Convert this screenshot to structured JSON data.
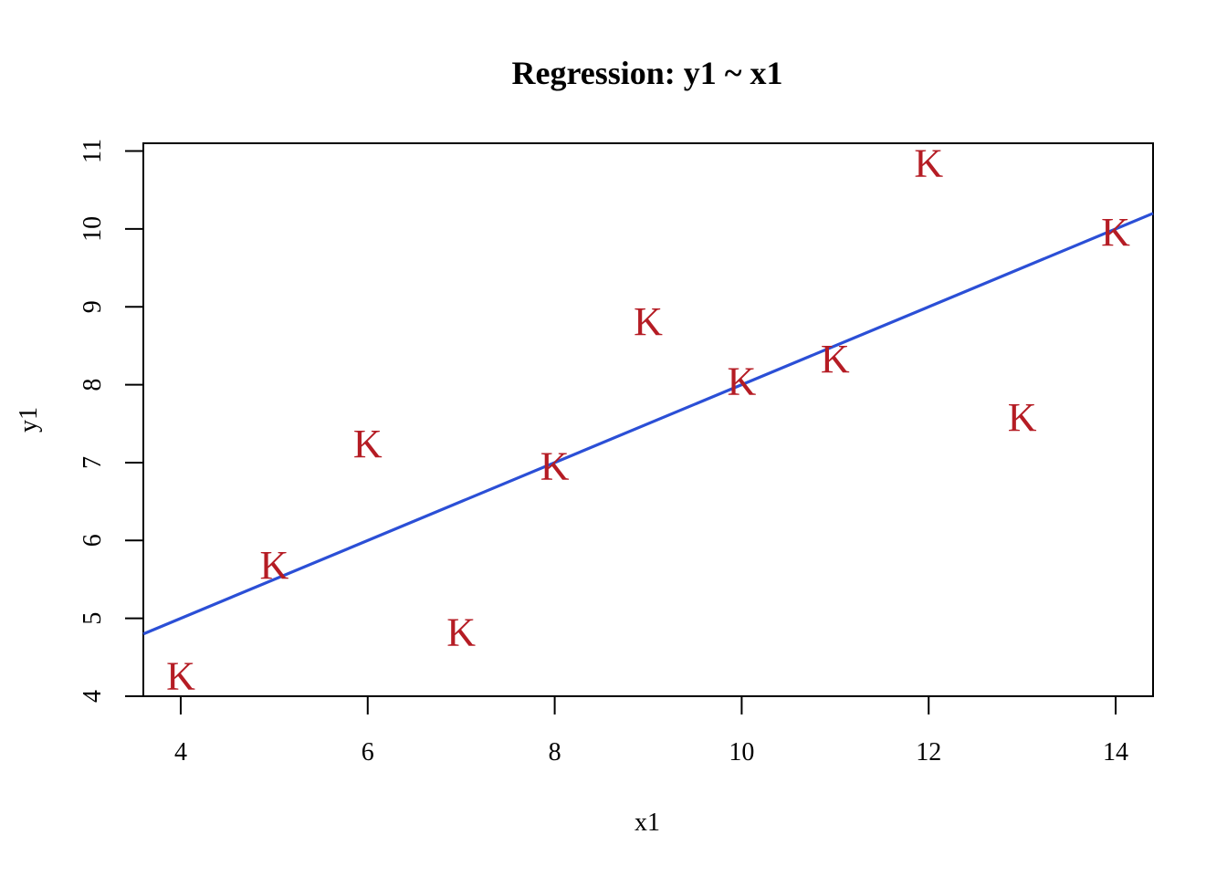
{
  "chart_data": {
    "type": "scatter",
    "title": "Regression: y1 ~ x1",
    "xlabel": "x1",
    "ylabel": "y1",
    "xlim": [
      3.6,
      14.4
    ],
    "ylim": [
      4,
      11.1
    ],
    "x_ticks": [
      4,
      6,
      8,
      10,
      12,
      14
    ],
    "y_ticks": [
      4,
      5,
      6,
      7,
      8,
      9,
      10,
      11
    ],
    "grid": false,
    "point_marker": "K",
    "point_color": "#b51c24",
    "line_color": "#2b4fd6",
    "points": [
      {
        "x": 10,
        "y": 8.04
      },
      {
        "x": 8,
        "y": 6.95
      },
      {
        "x": 13,
        "y": 7.58
      },
      {
        "x": 9,
        "y": 8.81
      },
      {
        "x": 11,
        "y": 8.33
      },
      {
        "x": 14,
        "y": 9.96
      },
      {
        "x": 6,
        "y": 7.24
      },
      {
        "x": 4,
        "y": 4.26
      },
      {
        "x": 12,
        "y": 10.84
      },
      {
        "x": 7,
        "y": 4.82
      },
      {
        "x": 5,
        "y": 5.68
      }
    ],
    "regression_line": {
      "intercept": 3.0,
      "slope": 0.5
    }
  }
}
